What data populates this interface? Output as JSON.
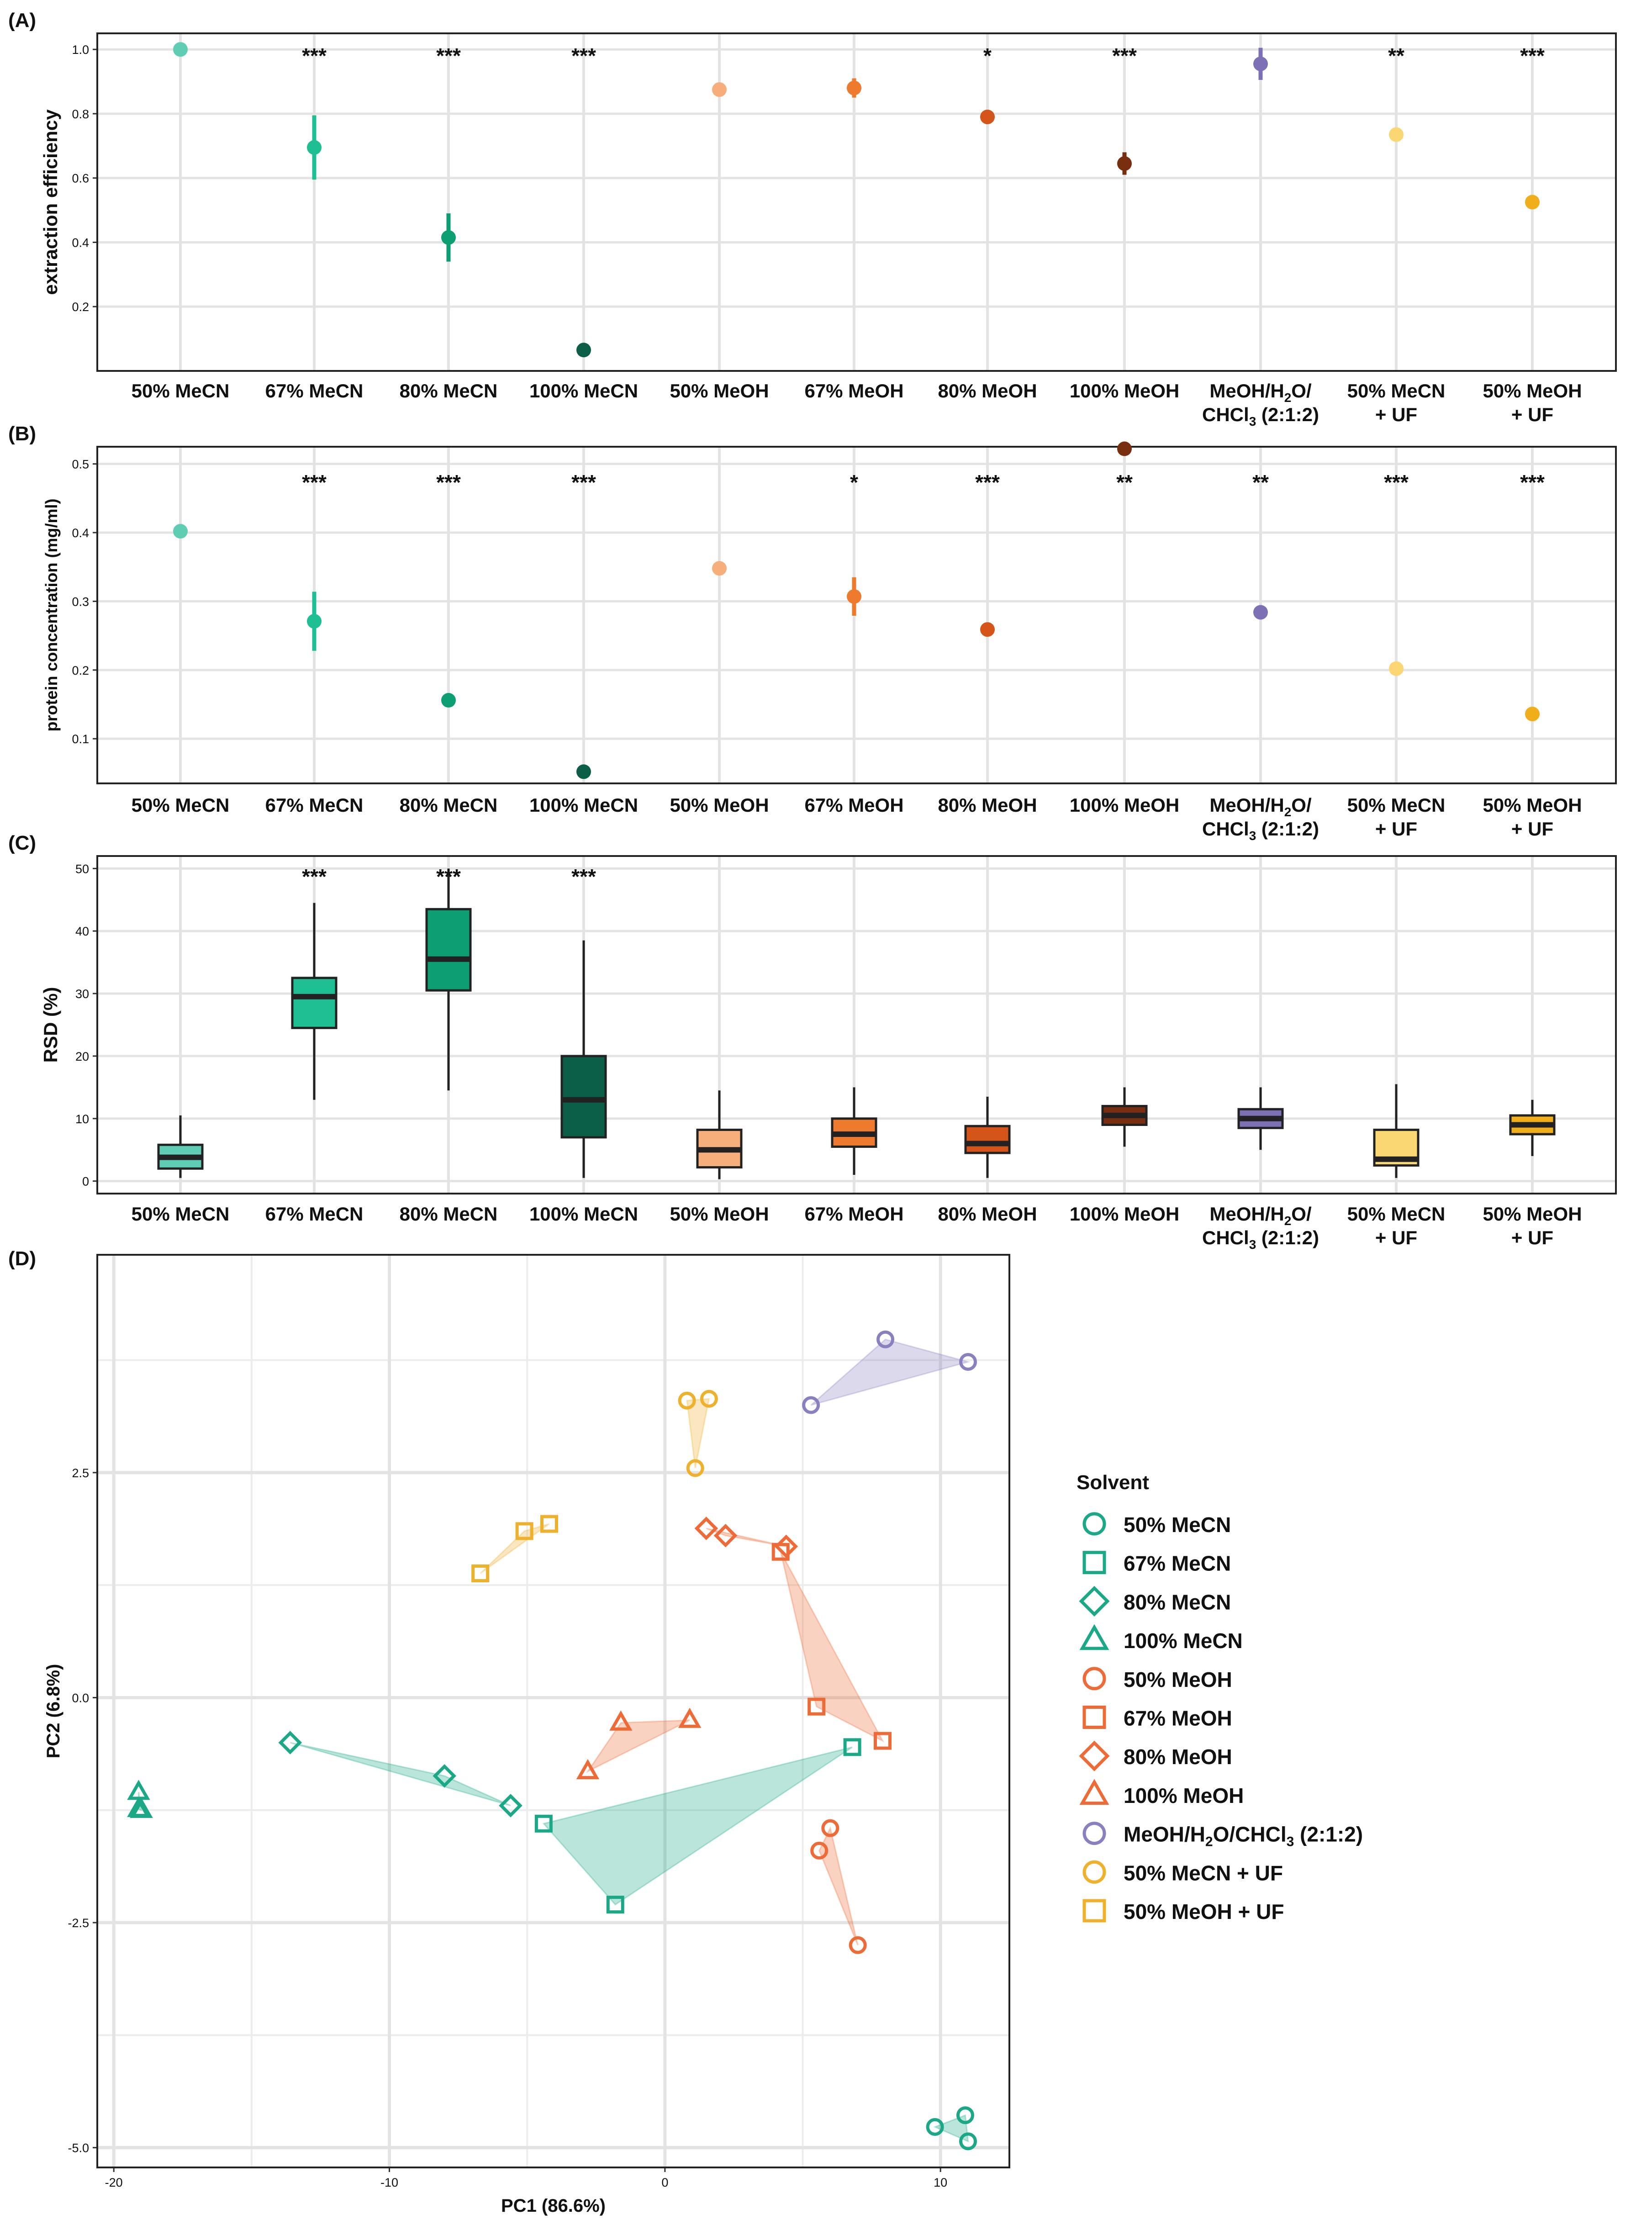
{
  "categories": [
    "50% MeCN",
    "67% MeCN",
    "80% MeCN",
    "100% MeCN",
    "50% MeOH",
    "67% MeOH",
    "80% MeOH",
    "100% MeOH",
    "MeOH/H2O/CHCl3 (2:1:2)",
    "50% MeCN + UF",
    "50% MeOH + UF"
  ],
  "colors": {
    "50% MeCN": "#5fcdb3",
    "67% MeCN": "#1fbf94",
    "80% MeCN": "#0e9e74",
    "100% MeCN": "#0b5e47",
    "50% MeOH": "#f6ae7a",
    "67% MeOH": "#ee7a2e",
    "80% MeOH": "#d4541a",
    "100% MeOH": "#7a2e10",
    "MeOH/H2O/CHCl3 (2:1:2)": "#7d70b5",
    "50% MeCN + UF": "#fad772",
    "50% MeOH + UF": "#efae1a",
    "pca_mecn": "#1aa887",
    "pca_meoh": "#ee6a36",
    "pca_chcl3": "#8a80c0",
    "pca_uf": "#efb02c"
  },
  "chart_data": [
    {
      "panel": "(A)",
      "type": "scatter",
      "ylabel": "extraction efficiency",
      "ylim": [
        0.0,
        1.05
      ],
      "yticks": [
        "0.2",
        "0.4",
        "0.6",
        "0.8",
        "1.0"
      ],
      "points": [
        {
          "category": "50% MeCN",
          "value": 1.0,
          "err": 0,
          "sig": ""
        },
        {
          "category": "67% MeCN",
          "value": 0.695,
          "err": 0.1,
          "sig": "***"
        },
        {
          "category": "80% MeCN",
          "value": 0.415,
          "err": 0.075,
          "sig": "***"
        },
        {
          "category": "100% MeCN",
          "value": 0.065,
          "err": 0,
          "sig": "***"
        },
        {
          "category": "50% MeOH",
          "value": 0.875,
          "err": 0,
          "sig": ""
        },
        {
          "category": "67% MeOH",
          "value": 0.88,
          "err": 0.03,
          "sig": ""
        },
        {
          "category": "80% MeOH",
          "value": 0.79,
          "err": 0.02,
          "sig": "*"
        },
        {
          "category": "100% MeOH",
          "value": 0.645,
          "err": 0.035,
          "sig": "***"
        },
        {
          "category": "MeOH/H2O/CHCl3 (2:1:2)",
          "value": 0.955,
          "err": 0.05,
          "sig": ""
        },
        {
          "category": "50% MeCN + UF",
          "value": 0.735,
          "err": 0,
          "sig": "**"
        },
        {
          "category": "50% MeOH + UF",
          "value": 0.525,
          "err": 0,
          "sig": "***"
        }
      ]
    },
    {
      "panel": "(B)",
      "type": "scatter",
      "ylabel": "protein concentration (mg/ml)",
      "ylim": [
        0.035,
        0.525
      ],
      "yticks": [
        "0.1",
        "0.2",
        "0.3",
        "0.4",
        "0.5"
      ],
      "points": [
        {
          "category": "50% MeCN",
          "value": 0.402,
          "err": 0,
          "sig": ""
        },
        {
          "category": "67% MeCN",
          "value": 0.271,
          "err": 0.043,
          "sig": "***"
        },
        {
          "category": "80% MeCN",
          "value": 0.156,
          "err": 0,
          "sig": "***"
        },
        {
          "category": "100% MeCN",
          "value": 0.052,
          "err": 0,
          "sig": "***"
        },
        {
          "category": "50% MeOH",
          "value": 0.348,
          "err": 0,
          "sig": ""
        },
        {
          "category": "67% MeOH",
          "value": 0.307,
          "err": 0.028,
          "sig": "*"
        },
        {
          "category": "80% MeOH",
          "value": 0.259,
          "err": 0,
          "sig": "***"
        },
        {
          "category": "100% MeOH",
          "value": 0.522,
          "err": 0,
          "sig": "**"
        },
        {
          "category": "MeOH/H2O/CHCl3 (2:1:2)",
          "value": 0.284,
          "err": 0,
          "sig": "**"
        },
        {
          "category": "50% MeCN + UF",
          "value": 0.202,
          "err": 0,
          "sig": "***"
        },
        {
          "category": "50% MeOH + UF",
          "value": 0.136,
          "err": 0,
          "sig": "***"
        }
      ]
    },
    {
      "panel": "(C)",
      "type": "box",
      "ylabel": "RSD (%)",
      "ylim": [
        -2,
        52
      ],
      "yticks": [
        "0",
        "10",
        "20",
        "30",
        "40",
        "50"
      ],
      "boxes": [
        {
          "category": "50% MeCN",
          "whisker_low": 0.5,
          "q1": 2,
          "median": 3.8,
          "q3": 5.8,
          "whisker_high": 10.5,
          "sig": ""
        },
        {
          "category": "67% MeCN",
          "whisker_low": 13,
          "q1": 24.5,
          "median": 29.5,
          "q3": 32.5,
          "whisker_high": 44.5,
          "sig": "***"
        },
        {
          "category": "80% MeCN",
          "whisker_low": 14.5,
          "q1": 30.5,
          "median": 35.5,
          "q3": 43.5,
          "whisker_high": 50,
          "sig": "***"
        },
        {
          "category": "100% MeCN",
          "whisker_low": 0.5,
          "q1": 7,
          "median": 13,
          "q3": 20,
          "whisker_high": 38.5,
          "sig": "***"
        },
        {
          "category": "50% MeOH",
          "whisker_low": 0.3,
          "q1": 2.2,
          "median": 5,
          "q3": 8.2,
          "whisker_high": 14.5,
          "sig": ""
        },
        {
          "category": "67% MeOH",
          "whisker_low": 1,
          "q1": 5.5,
          "median": 7.5,
          "q3": 10,
          "whisker_high": 15,
          "sig": ""
        },
        {
          "category": "80% MeOH",
          "whisker_low": 0.5,
          "q1": 4.5,
          "median": 6,
          "q3": 8.8,
          "whisker_high": 13.5,
          "sig": ""
        },
        {
          "category": "100% MeOH",
          "whisker_low": 5.5,
          "q1": 9,
          "median": 10.5,
          "q3": 12,
          "whisker_high": 15,
          "sig": ""
        },
        {
          "category": "MeOH/H2O/CHCl3 (2:1:2)",
          "whisker_low": 5,
          "q1": 8.5,
          "median": 10,
          "q3": 11.5,
          "whisker_high": 15,
          "sig": ""
        },
        {
          "category": "50% MeCN + UF",
          "whisker_low": 0.5,
          "q1": 2.5,
          "median": 3.5,
          "q3": 8.2,
          "whisker_high": 15.5,
          "sig": ""
        },
        {
          "category": "50% MeOH + UF",
          "whisker_low": 4,
          "q1": 7.5,
          "median": 9,
          "q3": 10.5,
          "whisker_high": 13,
          "sig": ""
        }
      ]
    },
    {
      "panel": "(D)",
      "type": "scatter",
      "xlabel": "PC1 (86.6%)",
      "ylabel": "PC2 (6.8%)",
      "xlim": [
        -20.6,
        12.5
      ],
      "ylim": [
        -5.22,
        4.92
      ],
      "xticks": [
        "-20",
        "-10",
        "0",
        "10"
      ],
      "xtick_values": [
        -20,
        -10,
        0,
        10
      ],
      "yticks": [
        "-5.0",
        "-2.5",
        "0.0",
        "2.5"
      ],
      "ytick_values": [
        -5.0,
        -2.5,
        0.0,
        2.5
      ],
      "legend_title": "Solvent",
      "legend": [
        {
          "label": "50% MeCN",
          "shape": "circle",
          "color": "pca_mecn"
        },
        {
          "label": "67% MeCN",
          "shape": "square",
          "color": "pca_mecn"
        },
        {
          "label": "80% MeCN",
          "shape": "diamond",
          "color": "pca_mecn"
        },
        {
          "label": "100% MeCN",
          "shape": "triangle",
          "color": "pca_mecn"
        },
        {
          "label": "50% MeOH",
          "shape": "circle",
          "color": "pca_meoh"
        },
        {
          "label": "67% MeOH",
          "shape": "square",
          "color": "pca_meoh"
        },
        {
          "label": "80% MeOH",
          "shape": "diamond",
          "color": "pca_meoh"
        },
        {
          "label": "100% MeOH",
          "shape": "triangle",
          "color": "pca_meoh"
        },
        {
          "label": "MeOH/H2O/CHCl3 (2:1:2)",
          "shape": "circle",
          "color": "pca_chcl3"
        },
        {
          "label": "50% MeCN + UF",
          "shape": "circle",
          "color": "pca_uf"
        },
        {
          "label": "50% MeOH + UF",
          "shape": "square",
          "color": "pca_uf"
        }
      ],
      "groups": [
        {
          "label": "50% MeCN",
          "shape": "circle",
          "color": "pca_mecn",
          "points": [
            [
              9.8,
              -4.77
            ],
            [
              10.9,
              -4.64
            ],
            [
              11.0,
              -4.93
            ]
          ]
        },
        {
          "label": "67% MeCN",
          "shape": "square",
          "color": "pca_mecn",
          "points": [
            [
              -4.4,
              -1.4
            ],
            [
              -1.8,
              -2.3
            ],
            [
              6.8,
              -0.55
            ]
          ]
        },
        {
          "label": "80% MeCN",
          "shape": "diamond",
          "color": "pca_mecn",
          "points": [
            [
              -13.6,
              -0.5
            ],
            [
              -8.0,
              -0.87
            ],
            [
              -5.6,
              -1.2
            ]
          ]
        },
        {
          "label": "100% MeCN",
          "shape": "triangle",
          "color": "pca_mecn",
          "points": [
            [
              -19.1,
              -1.05
            ],
            [
              -19.1,
              -1.24
            ],
            [
              -19.0,
              -1.25
            ]
          ]
        },
        {
          "label": "50% MeOH",
          "shape": "circle",
          "color": "pca_meoh",
          "points": [
            [
              5.6,
              -1.7
            ],
            [
              6.0,
              -1.45
            ],
            [
              7.0,
              -2.75
            ]
          ]
        },
        {
          "label": "67% MeOH",
          "shape": "square",
          "color": "pca_meoh",
          "points": [
            [
              5.5,
              -0.1
            ],
            [
              7.9,
              -0.48
            ],
            [
              4.2,
              1.62
            ]
          ]
        },
        {
          "label": "80% MeOH",
          "shape": "diamond",
          "color": "pca_meoh",
          "points": [
            [
              1.5,
              1.88
            ],
            [
              2.2,
              1.8
            ],
            [
              4.4,
              1.68
            ]
          ]
        },
        {
          "label": "100% MeOH",
          "shape": "triangle",
          "color": "pca_meoh",
          "points": [
            [
              -2.8,
              -0.82
            ],
            [
              -1.6,
              -0.28
            ],
            [
              0.9,
              -0.25
            ]
          ]
        },
        {
          "label": "MeOH/H2O/CHCl3 (2:1:2)",
          "shape": "circle",
          "color": "pca_chcl3",
          "points": [
            [
              5.3,
              3.25
            ],
            [
              8.0,
              3.98
            ],
            [
              11.0,
              3.73
            ]
          ]
        },
        {
          "label": "50% MeCN + UF",
          "shape": "circle",
          "color": "pca_uf",
          "points": [
            [
              0.8,
              3.3
            ],
            [
              1.6,
              3.32
            ],
            [
              1.1,
              2.55
            ]
          ]
        },
        {
          "label": "50% MeOH + UF",
          "shape": "square",
          "color": "pca_uf",
          "points": [
            [
              -6.7,
              1.38
            ],
            [
              -5.1,
              1.85
            ],
            [
              -4.2,
              1.93
            ]
          ]
        }
      ]
    }
  ]
}
